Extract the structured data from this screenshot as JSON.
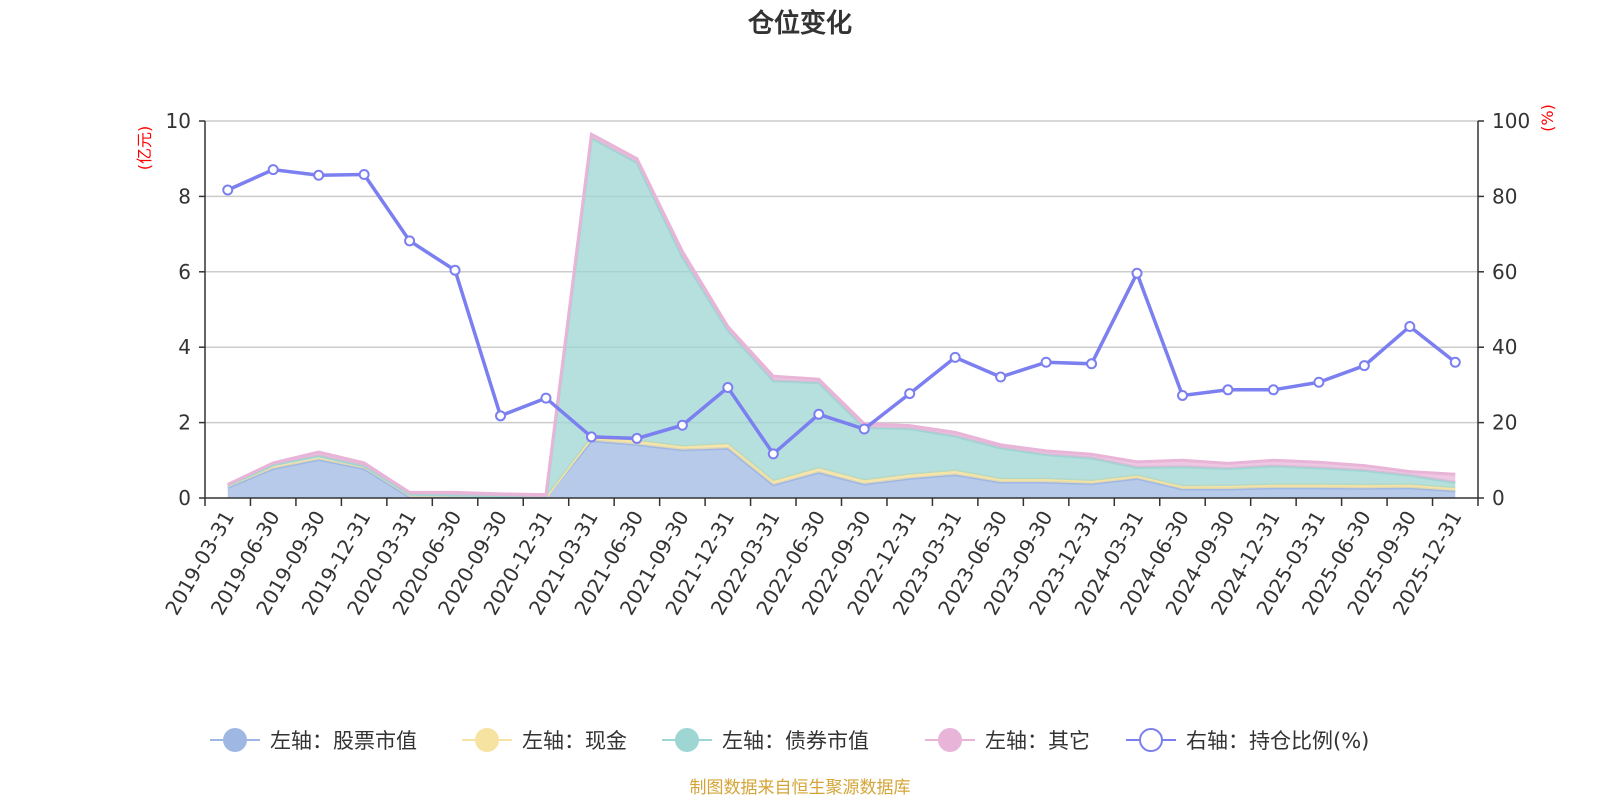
{
  "chart_data": {
    "type": "area",
    "title": "仓位变化",
    "left_axis": {
      "unit": "(亿元)",
      "ylim": [
        0,
        10
      ],
      "ticks": [
        0,
        2,
        4,
        6,
        8,
        10
      ]
    },
    "right_axis": {
      "unit": "(%)",
      "ylim": [
        0,
        100
      ],
      "ticks": [
        0,
        20,
        40,
        60,
        80,
        100
      ]
    },
    "categories": [
      "2019-03-31",
      "2019-06-30",
      "2019-09-30",
      "2019-12-31",
      "2020-03-31",
      "2020-06-30",
      "2020-09-30",
      "2020-12-31",
      "2021-03-31",
      "2021-06-30",
      "2021-09-30",
      "2021-12-31",
      "2022-03-31",
      "2022-06-30",
      "2022-09-30",
      "2022-12-31",
      "2023-03-31",
      "2023-06-30",
      "2023-09-30",
      "2023-12-31",
      "2024-03-31",
      "2024-06-30",
      "2024-09-30",
      "2024-12-31",
      "2025-03-31",
      "2025-06-30",
      "2025-09-30",
      "2025-12-31"
    ],
    "series": [
      {
        "name": "左轴：股票市值",
        "axis": "left",
        "kind": "stacked-area",
        "color": "#9fb8e3",
        "values": [
          0.28,
          0.78,
          1.02,
          0.78,
          0.03,
          0.03,
          0.02,
          0.02,
          1.52,
          1.42,
          1.28,
          1.32,
          0.35,
          0.68,
          0.37,
          0.52,
          0.62,
          0.42,
          0.42,
          0.38,
          0.52,
          0.24,
          0.24,
          0.27,
          0.27,
          0.26,
          0.27,
          0.19
        ]
      },
      {
        "name": "左轴：现金",
        "axis": "left",
        "kind": "stacked-area",
        "color": "#f7e3a1",
        "values": [
          0.06,
          0.1,
          0.1,
          0.07,
          0.07,
          0.05,
          0.03,
          0.0,
          0.08,
          0.1,
          0.09,
          0.11,
          0.1,
          0.11,
          0.1,
          0.1,
          0.1,
          0.08,
          0.08,
          0.07,
          0.07,
          0.07,
          0.08,
          0.08,
          0.08,
          0.08,
          0.08,
          0.07
        ]
      },
      {
        "name": "左轴：债券市值",
        "axis": "left",
        "kind": "stacked-area",
        "color": "#9dd6d3",
        "values": [
          0,
          0,
          0,
          0,
          0,
          0,
          0,
          0,
          7.95,
          7.38,
          5.03,
          3.02,
          2.66,
          2.27,
          1.4,
          1.22,
          0.92,
          0.83,
          0.65,
          0.61,
          0.22,
          0.52,
          0.46,
          0.5,
          0.45,
          0.39,
          0.25,
          0.15
        ]
      },
      {
        "name": "左轴：其它",
        "axis": "left",
        "kind": "stacked-area",
        "color": "#e8b4d8",
        "values": [
          0.02,
          0.05,
          0.1,
          0.08,
          0.05,
          0.07,
          0.06,
          0.07,
          0.1,
          0.1,
          0.14,
          0.1,
          0.12,
          0.09,
          0.1,
          0.08,
          0.1,
          0.08,
          0.1,
          0.1,
          0.15,
          0.17,
          0.14,
          0.15,
          0.15,
          0.13,
          0.1,
          0.22
        ]
      },
      {
        "name": "右轴：持仓比例(%)",
        "axis": "right",
        "kind": "line",
        "color": "#7b7ff0",
        "values": [
          81.7,
          87.1,
          85.6,
          85.8,
          68.2,
          60.4,
          21.8,
          26.5,
          16.2,
          15.8,
          19.3,
          29.3,
          11.7,
          22.2,
          18.3,
          27.7,
          37.3,
          32.1,
          36.0,
          35.6,
          59.6,
          27.2,
          28.7,
          28.7,
          30.7,
          35.1,
          45.5,
          36.0
        ]
      }
    ],
    "grid": true,
    "legend_position": "bottom",
    "source_note": "制图数据来自恒生聚源数据库"
  }
}
